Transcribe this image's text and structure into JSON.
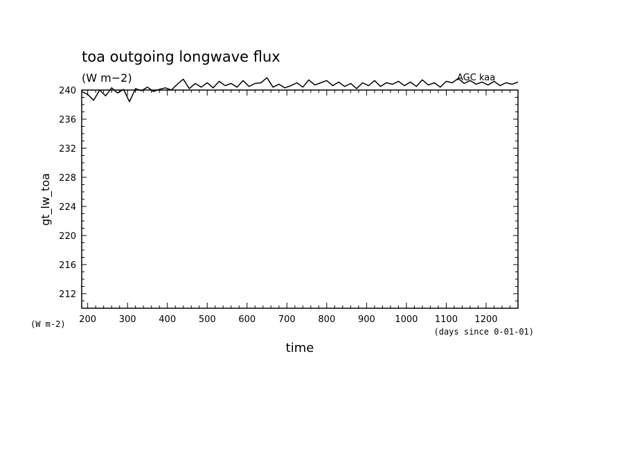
{
  "title": "toa outgoing longwave flux",
  "units": "(W m−2)",
  "overlay_label": "AGC  kaa",
  "ylabel": "gt_lw_toa",
  "xlabel": "time",
  "x_units_label": "(days since 0-01-01)",
  "y_units_label": "(W m-2)",
  "chart_data": {
    "type": "line",
    "xlim": [
      185,
      1280
    ],
    "ylim": [
      210,
      240
    ],
    "xticks": [
      200,
      300,
      400,
      500,
      600,
      700,
      800,
      900,
      1000,
      1100,
      1200
    ],
    "yticks": [
      212,
      216,
      220,
      224,
      228,
      232,
      236,
      240
    ],
    "grid": false,
    "series": [
      {
        "x": [
          185,
          200,
          215,
          230,
          245,
          260,
          275,
          290,
          305,
          320,
          335,
          350,
          365,
          380,
          395,
          410,
          425,
          440,
          455,
          470,
          485,
          500,
          515,
          530,
          545,
          560,
          575,
          590,
          605,
          620,
          635,
          650,
          665,
          680,
          695,
          710,
          725,
          740,
          755,
          770,
          785,
          800,
          815,
          830,
          845,
          860,
          875,
          890,
          905,
          920,
          935,
          950,
          965,
          980,
          995,
          1010,
          1025,
          1040,
          1055,
          1070,
          1085,
          1100,
          1115,
          1130,
          1145,
          1160,
          1175,
          1190,
          1205,
          1220,
          1235,
          1250,
          1265,
          1280
        ],
        "y": [
          239.8,
          239.4,
          238.6,
          240.0,
          239.2,
          240.3,
          239.6,
          240.1,
          238.4,
          240.2,
          239.9,
          240.4,
          239.8,
          240.1,
          240.3,
          240.0,
          240.8,
          241.5,
          240.2,
          240.9,
          240.4,
          241.0,
          240.3,
          241.2,
          240.6,
          240.9,
          240.4,
          241.3,
          240.5,
          240.9,
          241.0,
          241.7,
          240.4,
          240.8,
          240.3,
          240.6,
          241.0,
          240.4,
          241.4,
          240.7,
          241.0,
          241.3,
          240.6,
          241.1,
          240.5,
          240.9,
          240.2,
          241.0,
          240.6,
          241.3,
          240.5,
          241.0,
          240.8,
          241.2,
          240.6,
          241.1,
          240.5,
          241.4,
          240.7,
          241.0,
          240.4,
          241.2,
          241.0,
          241.6,
          240.9,
          241.3,
          240.8,
          241.1,
          240.7,
          241.2,
          240.6,
          241.0,
          240.8,
          241.1
        ]
      }
    ]
  }
}
